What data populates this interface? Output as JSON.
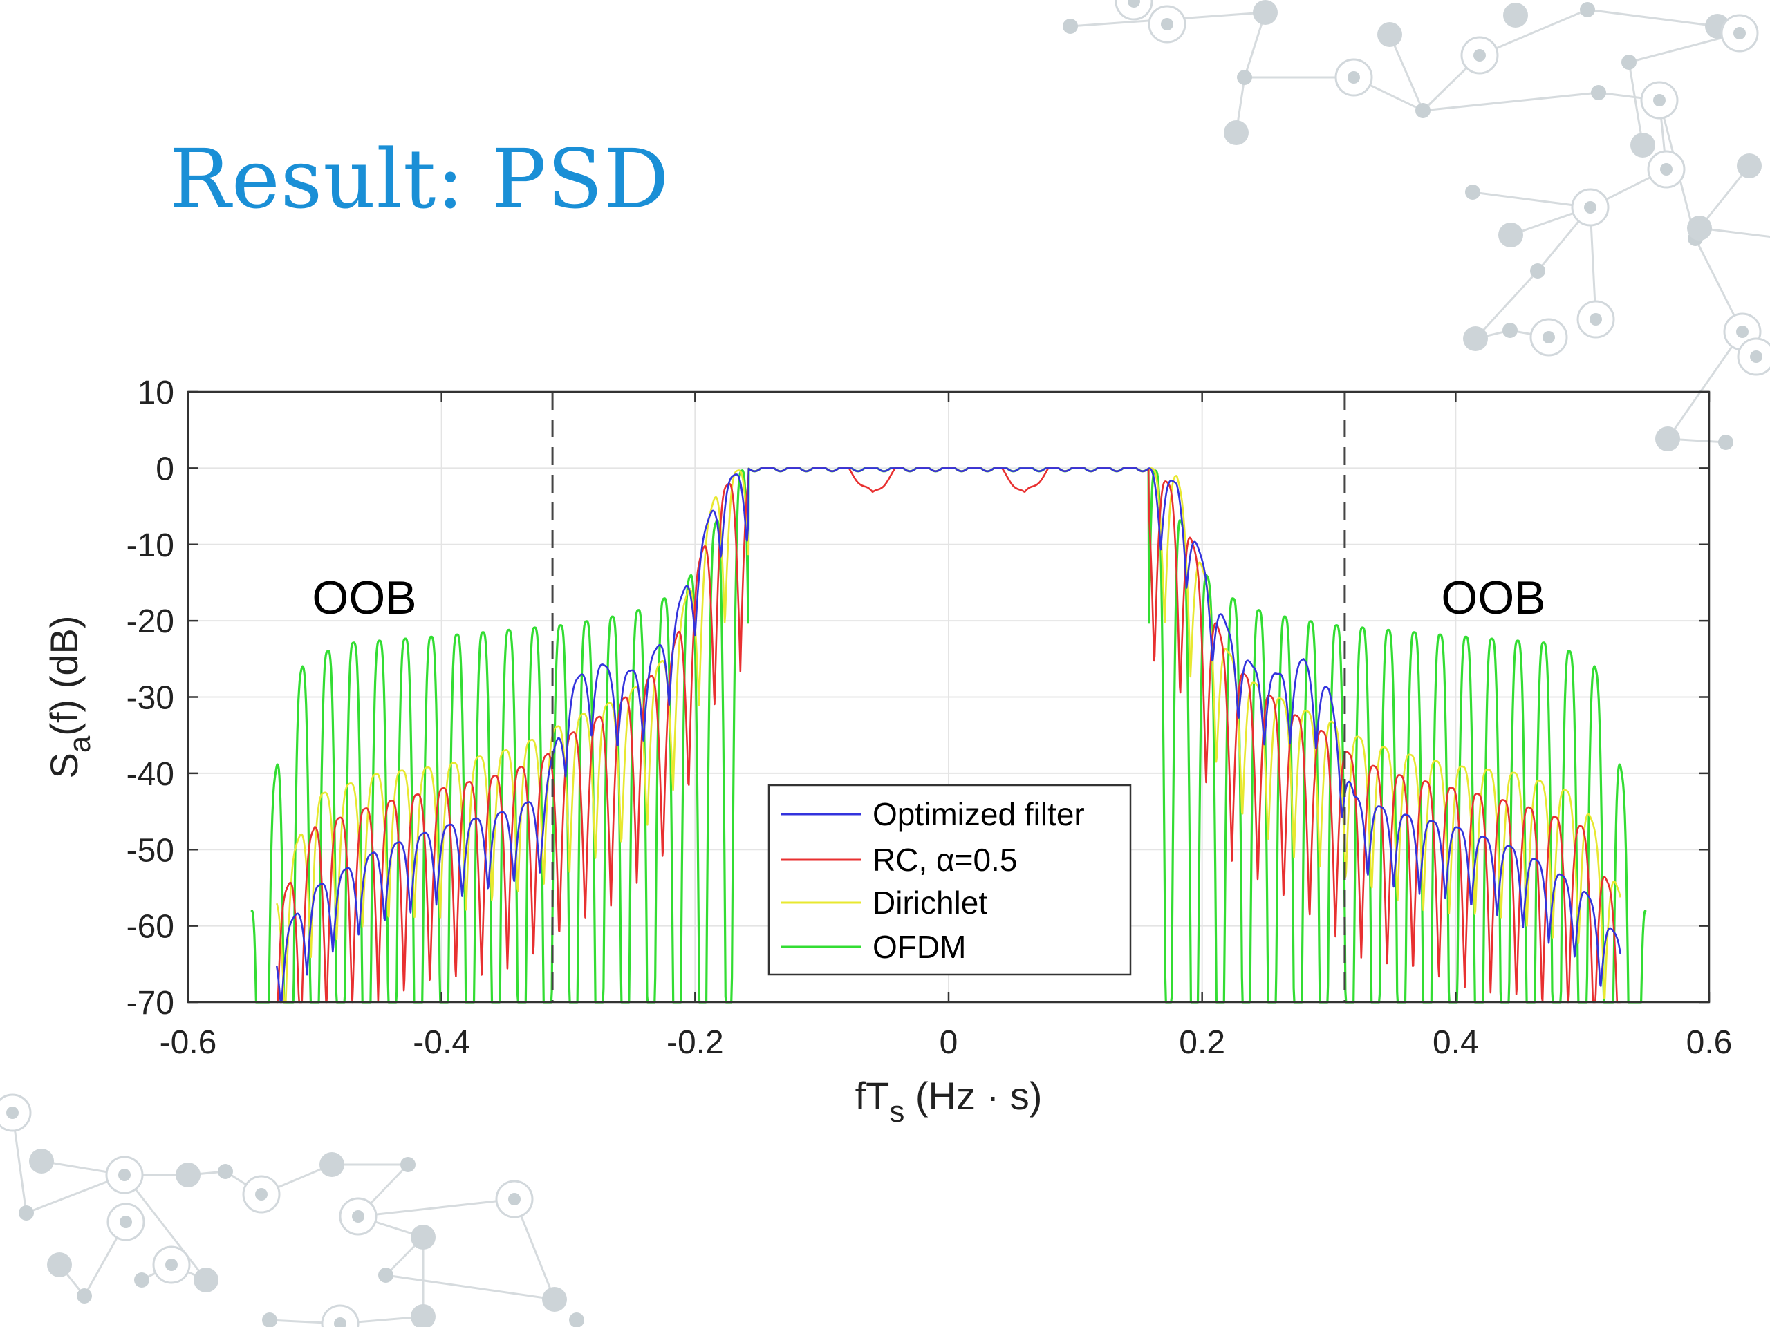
{
  "slide": {
    "title": "Result: PSD"
  },
  "chart_data": {
    "type": "line",
    "xlim": [
      -0.6,
      0.6
    ],
    "ylim": [
      -70,
      10
    ],
    "xticks": [
      -0.6,
      -0.4,
      -0.2,
      0,
      0.2,
      0.4,
      0.6
    ],
    "xtick_labels": [
      "-0.6",
      "-0.4",
      "-0.2",
      "0",
      "0.2",
      "0.4",
      "0.6"
    ],
    "yticks": [
      10,
      0,
      -10,
      -20,
      -30,
      -40,
      -50,
      -60,
      -70
    ],
    "ytick_labels": [
      "10",
      "0",
      "-10",
      "-20",
      "-30",
      "-40",
      "-50",
      "-60",
      "-70"
    ],
    "xlabel": {
      "main": "fT",
      "sub": "s",
      "rest": " (Hz · s)"
    },
    "ylabel": {
      "main": "S",
      "sub": "a",
      "rest": "(f) (dB)"
    },
    "grid": true,
    "legend_position": "bottom-center",
    "band_edges": [
      -0.3125,
      0.3125
    ],
    "annotations": [
      {
        "text": "OOB",
        "x": -0.45,
        "y": -18
      },
      {
        "text": "OOB",
        "x": 0.42,
        "y": -18
      }
    ],
    "series": [
      {
        "name": "Optimized filter",
        "color": "#3333dd",
        "envelope": [
          [
            -0.53,
            -62
          ],
          [
            -0.5,
            -55
          ],
          [
            -0.45,
            -50
          ],
          [
            -0.4,
            -47
          ],
          [
            -0.35,
            -45
          ],
          [
            -0.32,
            -43
          ],
          [
            -0.3,
            -29
          ],
          [
            -0.28,
            -25
          ],
          [
            -0.26,
            -27
          ],
          [
            -0.24,
            -26
          ],
          [
            -0.22,
            -21
          ],
          [
            -0.2,
            -12
          ],
          [
            -0.18,
            -2
          ],
          [
            -0.16,
            0
          ],
          [
            0.16,
            0
          ],
          [
            0.18,
            -2
          ],
          [
            0.2,
            -12
          ],
          [
            0.22,
            -21
          ],
          [
            0.24,
            -26
          ],
          [
            0.26,
            -27
          ],
          [
            0.28,
            -25
          ],
          [
            0.3,
            -29
          ],
          [
            0.32,
            -43
          ],
          [
            0.35,
            -45
          ],
          [
            0.4,
            -47
          ],
          [
            0.45,
            -50
          ],
          [
            0.5,
            -55
          ],
          [
            0.53,
            -62
          ]
        ]
      },
      {
        "name": "RC, α=0.5",
        "color": "#e83030",
        "envelope": [
          [
            -0.53,
            -58
          ],
          [
            -0.5,
            -47
          ],
          [
            -0.45,
            -44
          ],
          [
            -0.4,
            -42
          ],
          [
            -0.35,
            -40
          ],
          [
            -0.32,
            -38
          ],
          [
            -0.3,
            -35
          ],
          [
            -0.27,
            -32
          ],
          [
            -0.24,
            -28
          ],
          [
            -0.22,
            -25
          ],
          [
            -0.2,
            -14
          ],
          [
            -0.18,
            -3
          ],
          [
            -0.16,
            0
          ],
          [
            -0.08,
            0
          ],
          [
            -0.06,
            -3.5
          ],
          [
            -0.04,
            0
          ],
          [
            0.04,
            0
          ],
          [
            0.06,
            -3.5
          ],
          [
            0.08,
            0
          ],
          [
            0.16,
            0
          ],
          [
            0.18,
            -3
          ],
          [
            0.2,
            -14
          ],
          [
            0.22,
            -25
          ],
          [
            0.24,
            -28
          ],
          [
            0.27,
            -32
          ],
          [
            0.3,
            -35
          ],
          [
            0.32,
            -38
          ],
          [
            0.35,
            -40
          ],
          [
            0.4,
            -42
          ],
          [
            0.45,
            -44
          ],
          [
            0.5,
            -47
          ],
          [
            0.53,
            -58
          ]
        ]
      },
      {
        "name": "Dirichlet",
        "color": "#e8e830",
        "envelope": [
          [
            -0.53,
            -56
          ],
          [
            -0.5,
            -43
          ],
          [
            -0.45,
            -40
          ],
          [
            -0.4,
            -39
          ],
          [
            -0.35,
            -37
          ],
          [
            -0.32,
            -35
          ],
          [
            -0.3,
            -33
          ],
          [
            -0.27,
            -31
          ],
          [
            -0.24,
            -28
          ],
          [
            -0.22,
            -24
          ],
          [
            -0.2,
            -13
          ],
          [
            -0.18,
            -1
          ],
          [
            -0.16,
            0
          ],
          [
            0.16,
            0
          ],
          [
            0.18,
            -1
          ],
          [
            0.2,
            -13
          ],
          [
            0.22,
            -24
          ],
          [
            0.24,
            -28
          ],
          [
            0.27,
            -31
          ],
          [
            0.3,
            -33
          ],
          [
            0.32,
            -35
          ],
          [
            0.35,
            -37
          ],
          [
            0.4,
            -39
          ],
          [
            0.45,
            -40
          ],
          [
            0.5,
            -43
          ],
          [
            0.53,
            -56
          ]
        ]
      },
      {
        "name": "OFDM",
        "color": "#33dd33",
        "envelope": [
          [
            -0.55,
            -58
          ],
          [
            -0.53,
            -39
          ],
          [
            -0.51,
            -26
          ],
          [
            -0.48,
            -23
          ],
          [
            -0.4,
            -22
          ],
          [
            -0.3,
            -20.5
          ],
          [
            -0.25,
            -19
          ],
          [
            -0.21,
            -16
          ],
          [
            -0.19,
            -10
          ],
          [
            -0.17,
            -1
          ],
          [
            -0.16,
            0
          ],
          [
            0.16,
            0
          ],
          [
            0.17,
            -1
          ],
          [
            0.19,
            -10
          ],
          [
            0.21,
            -16
          ],
          [
            0.25,
            -19
          ],
          [
            0.3,
            -20.5
          ],
          [
            0.4,
            -22
          ],
          [
            0.48,
            -23
          ],
          [
            0.51,
            -26
          ],
          [
            0.53,
            -39
          ],
          [
            0.55,
            -58
          ]
        ]
      }
    ]
  }
}
